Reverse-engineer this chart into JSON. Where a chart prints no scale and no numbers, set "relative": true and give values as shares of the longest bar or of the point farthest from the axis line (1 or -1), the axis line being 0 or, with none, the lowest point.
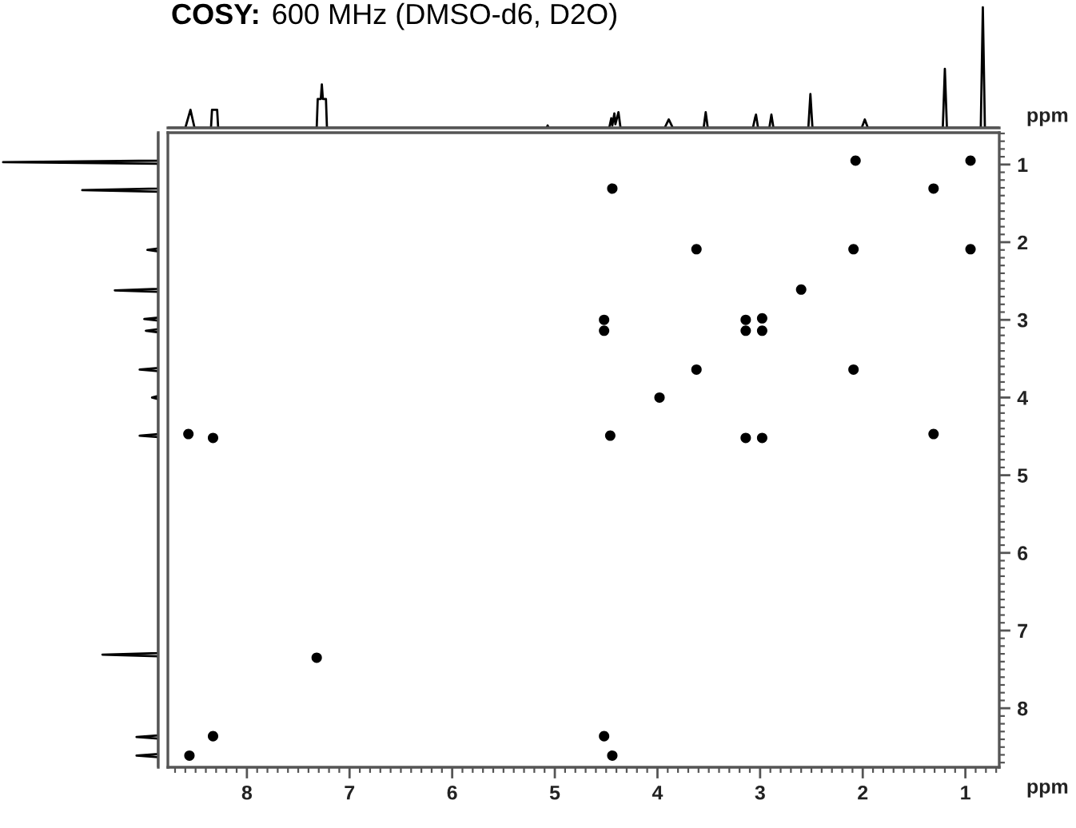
{
  "chart_data": [
    {
      "type": "line",
      "title": "COSY:",
      "subtitle": "600 MHz (DMSO-d6, D2O)",
      "relative": true,
      "tick_labels": false,
      "xlim": [
        8.77,
        0.67
      ],
      "x": [
        8.77,
        8.6,
        8.55,
        8.51,
        8.35,
        8.34,
        8.29,
        8.28,
        7.32,
        7.31,
        7.28,
        7.27,
        7.26,
        7.23,
        7.22,
        5.08,
        5.07,
        5.06,
        4.47,
        4.45,
        4.44,
        4.42,
        4.41,
        4.38,
        4.36,
        3.93,
        3.89,
        3.85,
        3.55,
        3.53,
        3.51,
        3.07,
        3.05,
        3.04,
        3.02,
        2.91,
        2.89,
        2.87,
        2.53,
        2.51,
        2.49,
        2.01,
        1.98,
        1.95,
        1.22,
        1.2,
        1.18,
        0.85,
        0.83,
        0.81,
        0.67
      ],
      "series": [
        {
          "color": "#000000",
          "values": [
            0,
            0,
            0.15,
            0,
            0,
            0.15,
            0.15,
            0,
            0,
            0.24,
            0.24,
            0.36,
            0.24,
            0.24,
            0,
            0,
            0.02,
            0,
            0,
            0.08,
            0.02,
            0.12,
            0.03,
            0.13,
            0,
            0,
            0.07,
            0,
            0,
            0.13,
            0,
            0,
            0.08,
            0.11,
            0,
            0,
            0.11,
            0,
            0,
            0.28,
            0,
            0,
            0.07,
            0,
            0,
            0.49,
            0,
            0,
            1,
            0,
            0
          ]
        }
      ]
    },
    {
      "type": "line",
      "orientation": "horizontal",
      "relative": true,
      "tick_labels": false,
      "ylim": [
        8.76,
        0.59
      ],
      "x": [
        0.59,
        0.95,
        0.97,
        0.99,
        1.31,
        1.33,
        1.35,
        2.08,
        2.1,
        2.12,
        2.6,
        2.62,
        2.64,
        2.97,
        2.99,
        3.01,
        3.12,
        3.14,
        3.16,
        3.62,
        3.64,
        3.66,
        3.98,
        4.0,
        4.02,
        4.47,
        4.49,
        4.51,
        7.29,
        7.31,
        7.33,
        8.35,
        8.37,
        8.39,
        8.59,
        8.61,
        8.63,
        8.76
      ],
      "series": [
        {
          "color": "#000000",
          "values": [
            0,
            0,
            -1,
            0,
            0,
            -0.49,
            0,
            0,
            -0.07,
            0,
            0,
            -0.28,
            0,
            0,
            -0.09,
            0,
            0,
            -0.08,
            0,
            0,
            -0.12,
            0,
            0,
            -0.04,
            0,
            0,
            -0.12,
            0,
            0,
            -0.36,
            0,
            0,
            -0.14,
            0,
            0,
            -0.14,
            0,
            0
          ]
        }
      ]
    },
    {
      "type": "scatter",
      "marker": "circle",
      "color": "#000000",
      "xlabel": "ppm",
      "ylabel": "ppm",
      "xlim": [
        8.77,
        0.67
      ],
      "ylim": [
        8.76,
        0.59
      ],
      "xticks": [
        8,
        7,
        6,
        5,
        4,
        3,
        2,
        1
      ],
      "yticks": [
        1,
        2,
        3,
        4,
        5,
        6,
        7,
        8
      ],
      "x": [
        2.07,
        0.95,
        4.44,
        1.31,
        3.62,
        2.09,
        0.95,
        2.6,
        4.52,
        4.52,
        3.14,
        2.98,
        3.14,
        2.98,
        3.62,
        2.09,
        3.98,
        4.46,
        3.14,
        2.98,
        1.31,
        8.57,
        8.33,
        8.56,
        8.33,
        7.32,
        4.52,
        4.44
      ],
      "values": [
        0.95,
        0.95,
        1.31,
        1.31,
        2.09,
        2.09,
        2.09,
        2.61,
        3.0,
        3.14,
        3.14,
        2.98,
        3.0,
        3.14,
        3.64,
        3.64,
        4.0,
        4.49,
        4.52,
        4.52,
        4.47,
        4.47,
        4.52,
        8.61,
        8.36,
        7.35,
        8.36,
        8.61
      ]
    }
  ]
}
